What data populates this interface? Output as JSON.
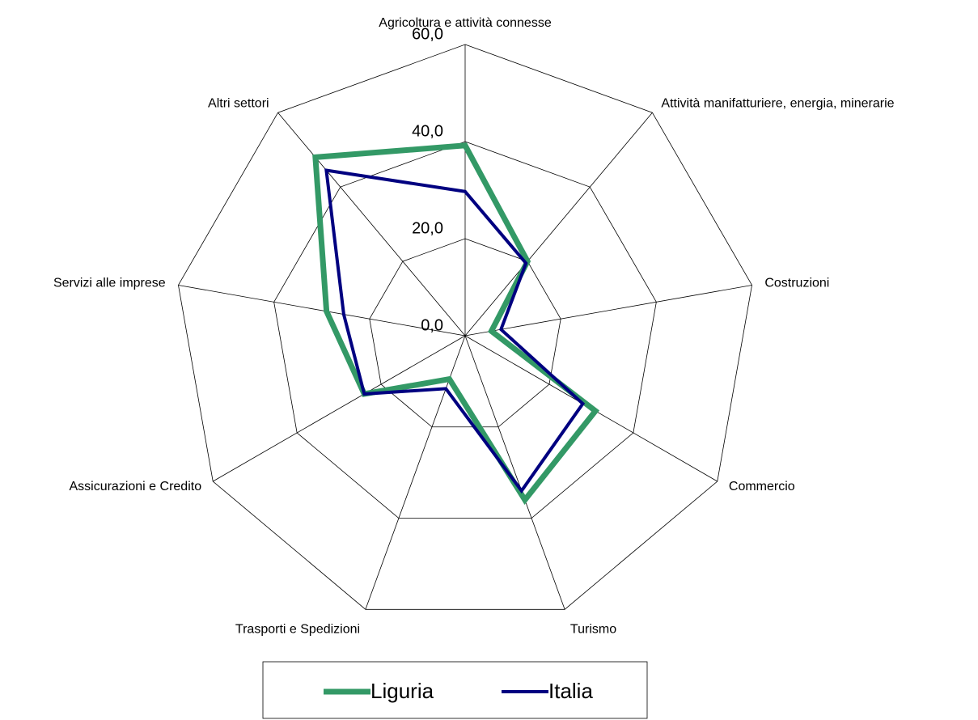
{
  "chart_data": {
    "type": "radar",
    "categories": [
      "Agricoltura e attività connesse",
      "Attività manifatturiere, energia, minerarie",
      "Costruzioni",
      "Commercio",
      "Turismo",
      "Trasporti e Spedizioni",
      "Assicurazioni e Credito",
      "Servizi alle imprese",
      "Altri settori"
    ],
    "series": [
      {
        "name": "Liguria",
        "color": "#339966",
        "values": [
          39.2,
          20.0,
          5.5,
          31.0,
          36.0,
          9.5,
          24.0,
          29.0,
          48.0
        ]
      },
      {
        "name": "Italia",
        "color": "#000080",
        "values": [
          29.7,
          19.5,
          7.5,
          28.0,
          34.0,
          11.6,
          24.0,
          25.4,
          44.5
        ]
      }
    ],
    "ylim": [
      0,
      60
    ],
    "yticks": [
      {
        "value": 0,
        "label": "0,0"
      },
      {
        "value": 20,
        "label": "20,0"
      },
      {
        "value": 40,
        "label": "40,0"
      },
      {
        "value": 60,
        "label": "60,0"
      }
    ],
    "grid": true,
    "legend": "bottom"
  }
}
